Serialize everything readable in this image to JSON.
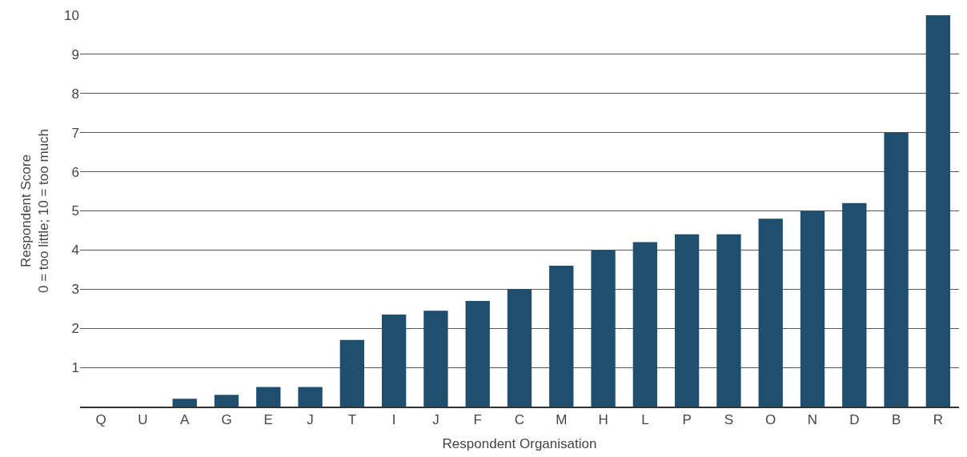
{
  "chart_data": {
    "type": "bar",
    "xlabel": "Respondent Organisation",
    "ylabel": "Respondent Score\n0 = too little; 10 = too much",
    "categories": [
      "Q",
      "U",
      "A",
      "G",
      "E",
      "J",
      "T",
      "I",
      "J",
      "F",
      "C",
      "M",
      "H",
      "L",
      "P",
      "S",
      "O",
      "N",
      "D",
      "B",
      "R"
    ],
    "values": [
      0,
      0,
      0.2,
      0.3,
      0.5,
      0.5,
      1.7,
      2.35,
      2.45,
      2.7,
      3.0,
      3.6,
      4.0,
      4.2,
      4.4,
      4.4,
      4.8,
      5.0,
      5.2,
      7.0,
      10.0
    ],
    "color": "#1f4e6e",
    "ylim": [
      0,
      10
    ],
    "yticks": [
      1,
      2,
      3,
      4,
      5,
      6,
      7,
      8,
      9,
      10
    ],
    "grid": "y",
    "legend": false
  }
}
